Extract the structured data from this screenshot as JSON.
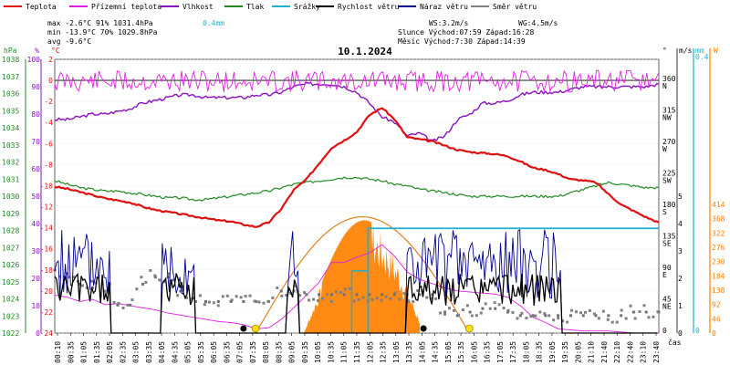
{
  "chart_data": {
    "type": "line",
    "title": "10.1.2024",
    "xlabel": "čas",
    "legend": [
      {
        "name": "Teplota",
        "color": "#e01010"
      },
      {
        "name": "Přízemní teplota",
        "color": "#e020e0"
      },
      {
        "name": "Vlhkost",
        "color": "#8a10c0"
      },
      {
        "name": "Tlak",
        "color": "#208a20"
      },
      {
        "name": "Srážky",
        "color": "#20b0d0"
      },
      {
        "name": "Rychlost větru",
        "color": "#000000"
      },
      {
        "name": "Náraz větru",
        "color": "#000090"
      },
      {
        "name": "Směr větru",
        "color": "#808080"
      }
    ],
    "stats": {
      "max_label": "max -2.6°C  91%  1031.4hPa",
      "max_rain": "0.4mm",
      "min_label": "min -13.9°C 70%  1029.8hPa",
      "avg_label": "avg -9.6°C",
      "ws": "WS:3.2m/s",
      "wg": "WG:4.5m/s",
      "sun": "Slunce Východ:07:59  Západ:16:28",
      "moon": "Měsíc  Východ:7:30   Západ:14:39"
    },
    "axes": {
      "hpa": {
        "label": "hPa",
        "ticks": [
          "1038",
          "1037",
          "1036",
          "1035",
          "1034",
          "1033",
          "1032",
          "1031",
          "1030",
          "1029",
          "1028",
          "1027",
          "1026",
          "1025",
          "1024",
          "1023",
          "1022"
        ],
        "range": [
          1022,
          1038
        ]
      },
      "pct": {
        "label": "%",
        "ticks": [
          "100",
          "90",
          "80",
          "70",
          "60",
          "50",
          "40",
          "30",
          "20",
          "10",
          "0"
        ],
        "range": [
          0,
          100
        ]
      },
      "temp": {
        "label": "°C",
        "ticks": [
          "2",
          "0",
          "-2",
          "-4",
          "-6",
          "-8",
          "-10",
          "-12",
          "-14",
          "-16",
          "-18",
          "-20",
          "-22",
          "-24"
        ],
        "range": [
          -24,
          2
        ]
      },
      "dir": {
        "label": "°",
        "ticks": [
          "360 N",
          "315 NW",
          "270 W",
          "225 SW",
          "180 S",
          "135 SE",
          "90 E",
          "45 NE",
          "0"
        ],
        "range": [
          0,
          360
        ]
      },
      "ms": {
        "label": "m/s",
        "ticks": [
          "5",
          "4",
          "3",
          "2",
          "1",
          "0"
        ],
        "range": [
          0,
          5
        ]
      },
      "mm": {
        "label": "mm",
        "ticks": [
          "0.4",
          "0"
        ]
      },
      "wm2": {
        "label": "W",
        "ticks": [
          "414",
          "368",
          "322",
          "276",
          "230",
          "184",
          "138",
          "92",
          "46",
          "0"
        ],
        "range": [
          0,
          414
        ]
      }
    },
    "x_ticks": [
      "00:10",
      "00:35",
      "01:05",
      "01:35",
      "02:05",
      "02:35",
      "03:05",
      "03:35",
      "04:05",
      "04:35",
      "05:05",
      "05:35",
      "06:05",
      "06:35",
      "07:05",
      "07:35",
      "08:05",
      "08:35",
      "09:05",
      "09:35",
      "10:05",
      "10:35",
      "11:05",
      "11:35",
      "12:05",
      "12:35",
      "13:05",
      "13:35",
      "14:05",
      "14:35",
      "15:05",
      "15:35",
      "16:05",
      "16:35",
      "17:05",
      "17:35",
      "18:05",
      "18:35",
      "19:05",
      "19:35",
      "20:05",
      "21:10",
      "21:40",
      "22:10",
      "22:40",
      "23:10",
      "23:40"
    ],
    "series": {
      "time_h": [
        0,
        0.5,
        1,
        1.5,
        2,
        2.5,
        3,
        3.5,
        4,
        4.5,
        5,
        5.5,
        6,
        6.5,
        7,
        7.5,
        8,
        8.5,
        9,
        9.5,
        10,
        10.5,
        11,
        11.5,
        12,
        12.5,
        13,
        13.5,
        14,
        14.5,
        15,
        15.5,
        16,
        16.5,
        17,
        17.5,
        18,
        18.5,
        19,
        19.5,
        20,
        20.5,
        21,
        21.5,
        22,
        22.5,
        23,
        23.5,
        24
      ],
      "teplota": [
        -10.1,
        -10.3,
        -10.6,
        -10.9,
        -11.2,
        -11.4,
        -11.6,
        -12.0,
        -12.3,
        -12.5,
        -12.7,
        -12.9,
        -13.1,
        -13.3,
        -13.4,
        -13.7,
        -13.9,
        -13.5,
        -12.2,
        -10.4,
        -9.4,
        -7.9,
        -6.4,
        -5.7,
        -4.9,
        -3.3,
        -2.6,
        -3.7,
        -5.4,
        -5.6,
        -5.8,
        -6.2,
        -6.6,
        -6.8,
        -6.9,
        -7.0,
        -7.2,
        -7.7,
        -8.3,
        -8.5,
        -8.9,
        -9.4,
        -9.5,
        -9.7,
        -10.8,
        -11.8,
        -12.4,
        -13.0,
        -13.5
      ],
      "vlhkost": [
        78,
        78,
        79,
        80,
        80,
        81,
        82,
        84,
        85,
        86,
        87,
        87,
        86,
        86,
        86,
        86,
        87,
        87,
        88,
        90,
        91,
        91,
        91,
        90,
        88,
        84,
        79,
        77,
        72,
        73,
        70,
        72,
        78,
        80,
        84,
        84,
        85,
        87,
        88,
        88,
        88,
        89,
        90,
        90,
        90,
        90,
        90,
        90,
        91
      ],
      "tlak": [
        1030.9,
        1030.7,
        1030.5,
        1030.4,
        1030.3,
        1030.3,
        1030.2,
        1030.1,
        1030.0,
        1029.9,
        1029.9,
        1029.8,
        1029.8,
        1029.9,
        1030.0,
        1030.1,
        1030.2,
        1030.3,
        1030.5,
        1030.7,
        1030.8,
        1030.9,
        1031.0,
        1031.1,
        1031.1,
        1031.0,
        1030.9,
        1030.7,
        1030.6,
        1030.4,
        1030.3,
        1030.2,
        1030.1,
        1030.0,
        1030.0,
        1030.0,
        1030.0,
        1030.0,
        1030.0,
        1030.0,
        1030.0,
        1030.2,
        1030.4,
        1030.6,
        1030.8,
        1030.7,
        1030.6,
        1030.5,
        1030.5
      ],
      "prizemni": [
        -20.4,
        -20.6,
        -21.0,
        -20.8,
        -21.3,
        -21.2,
        -21.4,
        -21.6,
        -21.8,
        -22.1,
        -22.3,
        -22.5,
        -22.7,
        -22.9,
        -23.0,
        -23.2,
        -23.6,
        -23.5,
        -22.7,
        -21.6,
        -20.4,
        -19.2,
        -17.3,
        -17.3,
        -16.8,
        -16.4,
        -15.6,
        -16.7,
        -18.2,
        -18.9,
        -19.3,
        -19.7,
        -20.0,
        -20.1,
        -20.2,
        -20.3,
        -20.6,
        -21.4,
        -22.5,
        -23.0,
        -23.6,
        -23.7,
        -23.8,
        -23.8,
        -23.8,
        -23.9,
        -24.0,
        -24.0,
        -24.0
      ],
      "smer_vetru": [
        90,
        85,
        70,
        65,
        60,
        40,
        40,
        70,
        80,
        80,
        60,
        50,
        45,
        45,
        45,
        45,
        45,
        45,
        60,
        60,
        55,
        55,
        55,
        55,
        55,
        55,
        55,
        55,
        55,
        55,
        55,
        30,
        25,
        30,
        35,
        35,
        30,
        25,
        25,
        25,
        25,
        25,
        25,
        25,
        25,
        25,
        30,
        30,
        30
      ],
      "rychlost": [
        0.0,
        0.8,
        1.8,
        1.2,
        0.0,
        0.0,
        0.0,
        0.0,
        0.0,
        0.0,
        1.2,
        0.0,
        0.0,
        0.0,
        0.0,
        0.0,
        0.0,
        0.0,
        0.0,
        0.0,
        0.0,
        0.0,
        0.0,
        0.0,
        0.0,
        0.0,
        0.0,
        0.0,
        1.4,
        0.0,
        0.0,
        0.0,
        0.0,
        0.0,
        0.0,
        0.0,
        0.0,
        0.0,
        0.0,
        0.0,
        0.0,
        0.0,
        0.0,
        0.0,
        0.0,
        0.0,
        0.0,
        0.0,
        0.0
      ]
    },
    "solar_max_w": 374,
    "srazky_total_mm": 0.4
  }
}
